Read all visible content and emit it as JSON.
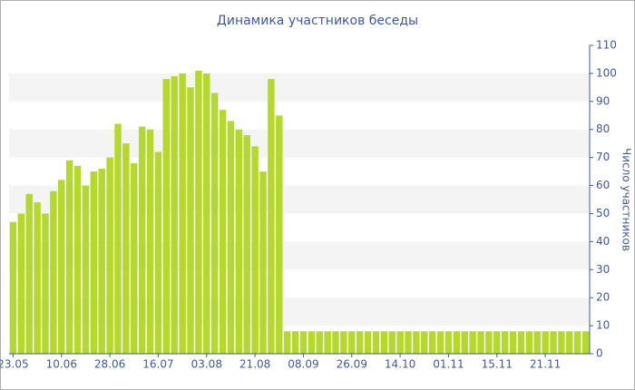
{
  "chart_data": {
    "type": "bar",
    "title": "Динамика участников беседы",
    "y_axis_label": "Число участников",
    "categories": [
      "23.05",
      null,
      null,
      null,
      null,
      null,
      "10.06",
      null,
      null,
      null,
      null,
      null,
      "28.06",
      null,
      null,
      null,
      null,
      null,
      "16.07",
      null,
      null,
      null,
      null,
      null,
      "03.08",
      null,
      null,
      null,
      null,
      null,
      "21.08",
      null,
      null,
      null,
      null,
      null,
      "08.09",
      null,
      null,
      null,
      null,
      null,
      "26.09",
      null,
      null,
      null,
      null,
      null,
      "14.10",
      null,
      null,
      null,
      null,
      null,
      "01.11",
      null,
      null,
      null,
      null,
      null,
      "15.11",
      null,
      null,
      null,
      null,
      null,
      "21.11",
      null,
      null,
      null,
      null,
      null
    ],
    "values": [
      47,
      50,
      57,
      54,
      50,
      58,
      62,
      69,
      67,
      60,
      65,
      66,
      70,
      82,
      75,
      68,
      81,
      80,
      72,
      98,
      99,
      100,
      95,
      101,
      100,
      93,
      87,
      83,
      80,
      78,
      74,
      65,
      98,
      85,
      8,
      8,
      8,
      8,
      8,
      8,
      8,
      8,
      8,
      8,
      8,
      8,
      8,
      8,
      8,
      8,
      8,
      8,
      8,
      8,
      8,
      8,
      8,
      8,
      8,
      8,
      8,
      8,
      8,
      8,
      8,
      8,
      8,
      8,
      8,
      8,
      8,
      8
    ],
    "color": "#b5d82c",
    "ylim": [
      0,
      110
    ],
    "yticks": [
      0,
      10,
      20,
      30,
      40,
      50,
      60,
      70,
      80,
      90,
      100,
      110
    ],
    "y_axis_side": "right",
    "grid": true
  }
}
